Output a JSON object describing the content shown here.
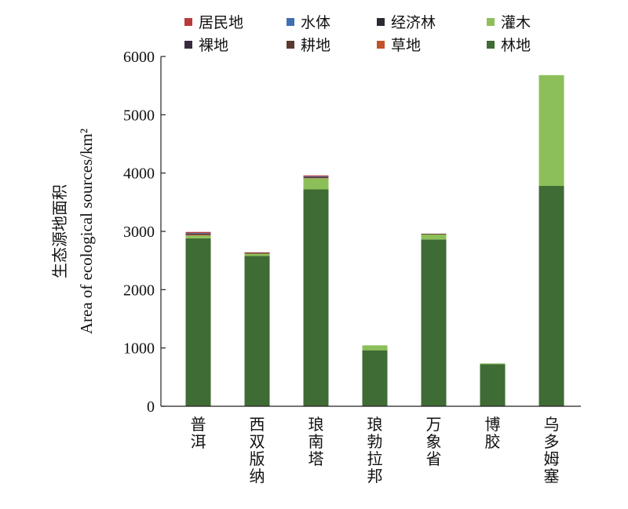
{
  "chart_data": {
    "type": "bar",
    "stacked": true,
    "ylabel_cn": "生态源地面积",
    "ylabel_en": "Area of ecological sources/km²",
    "ylim": [
      0,
      6000
    ],
    "yticks": [
      0,
      1000,
      2000,
      3000,
      4000,
      5000,
      6000
    ],
    "categories": [
      "普洱",
      "西双版纳",
      "琅南塔",
      "琅勃拉邦",
      "万象省",
      "博胶",
      "乌多姆塞"
    ],
    "series": [
      {
        "name": "林地",
        "color": "#3f6b34",
        "values": [
          2880,
          2580,
          3720,
          960,
          2860,
          720,
          3780
        ]
      },
      {
        "name": "灌木",
        "color": "#8cbf5a",
        "values": [
          50,
          40,
          190,
          85,
          90,
          15,
          1900
        ]
      },
      {
        "name": "草地",
        "color": "#c0532a",
        "values": [
          10,
          5,
          10,
          0,
          5,
          0,
          0
        ]
      },
      {
        "name": "耕地",
        "color": "#5a3a30",
        "values": [
          10,
          5,
          5,
          0,
          0,
          0,
          0
        ]
      },
      {
        "name": "裸地",
        "color": "#3a2a40",
        "values": [
          5,
          0,
          5,
          0,
          0,
          0,
          0
        ]
      },
      {
        "name": "经济林",
        "color": "#2a2a35",
        "values": [
          10,
          5,
          10,
          0,
          5,
          0,
          0
        ]
      },
      {
        "name": "水体",
        "color": "#3f6fb0",
        "values": [
          5,
          0,
          5,
          0,
          0,
          0,
          0
        ]
      },
      {
        "name": "居民地",
        "color": "#b83a3a",
        "values": [
          20,
          5,
          15,
          0,
          0,
          0,
          0
        ]
      }
    ],
    "legend": {
      "placement": "top",
      "rows": [
        [
          "居民地",
          "水体",
          "经济林",
          "灌木"
        ],
        [
          "裸地",
          "耕地",
          "草地",
          "林地"
        ]
      ]
    }
  }
}
